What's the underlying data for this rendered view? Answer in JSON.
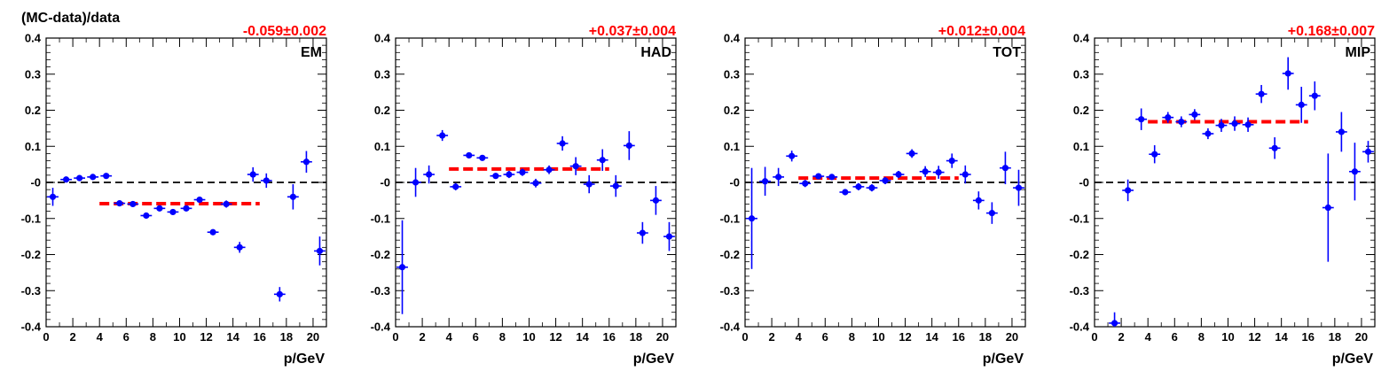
{
  "figure": {
    "ylabel": "(MC-data)/data",
    "xlabel": "p/GeV",
    "x_ticks": [
      "0",
      "2",
      "4",
      "6",
      "8",
      "10",
      "12",
      "14",
      "16",
      "18",
      "20"
    ],
    "y_ticks": [
      "-0.4",
      "-0.3",
      "-0.2",
      "-0.1",
      "-0",
      "0.1",
      "0.2",
      "0.3",
      "0.4"
    ],
    "colors": {
      "points": "#0000ff",
      "fit": "#ff0000",
      "zero_line": "#000000",
      "fit_text": "#ff0000"
    }
  },
  "chart_data": [
    {
      "type": "scatter",
      "panel_label": "EM",
      "fit_value": "-0.059±0.002",
      "fit_level": -0.059,
      "fit_range": [
        4,
        16
      ],
      "xlim": [
        0,
        21
      ],
      "ylim": [
        -0.4,
        0.4
      ],
      "grid": false,
      "points": [
        {
          "x": 0.5,
          "y": -0.04,
          "err": 0.025
        },
        {
          "x": 1.5,
          "y": 0.008,
          "err": 0.006
        },
        {
          "x": 2.5,
          "y": 0.012,
          "err": 0.005
        },
        {
          "x": 3.5,
          "y": 0.015,
          "err": 0.005
        },
        {
          "x": 4.5,
          "y": 0.018,
          "err": 0.005
        },
        {
          "x": 5.5,
          "y": -0.058,
          "err": 0.005
        },
        {
          "x": 6.5,
          "y": -0.06,
          "err": 0.005
        },
        {
          "x": 7.5,
          "y": -0.092,
          "err": 0.005
        },
        {
          "x": 8.5,
          "y": -0.072,
          "err": 0.006
        },
        {
          "x": 9.5,
          "y": -0.082,
          "err": 0.006
        },
        {
          "x": 10.5,
          "y": -0.072,
          "err": 0.007
        },
        {
          "x": 11.5,
          "y": -0.048,
          "err": 0.008
        },
        {
          "x": 12.5,
          "y": -0.138,
          "err": 0.008
        },
        {
          "x": 13.5,
          "y": -0.06,
          "err": 0.01
        },
        {
          "x": 14.5,
          "y": -0.18,
          "err": 0.015
        },
        {
          "x": 15.5,
          "y": 0.022,
          "err": 0.02
        },
        {
          "x": 16.5,
          "y": 0.005,
          "err": 0.02
        },
        {
          "x": 17.5,
          "y": -0.31,
          "err": 0.02
        },
        {
          "x": 18.5,
          "y": -0.04,
          "err": 0.035
        },
        {
          "x": 19.5,
          "y": 0.057,
          "err": 0.03
        },
        {
          "x": 20.5,
          "y": -0.19,
          "err": 0.04
        }
      ]
    },
    {
      "type": "scatter",
      "panel_label": "HAD",
      "fit_value": "+0.037±0.004",
      "fit_level": 0.037,
      "fit_range": [
        4,
        16
      ],
      "xlim": [
        0,
        21
      ],
      "ylim": [
        -0.4,
        0.4
      ],
      "grid": false,
      "points": [
        {
          "x": 0.5,
          "y": -0.235,
          "err": 0.13
        },
        {
          "x": 1.5,
          "y": 0.0,
          "err": 0.04
        },
        {
          "x": 2.5,
          "y": 0.022,
          "err": 0.025
        },
        {
          "x": 3.5,
          "y": 0.13,
          "err": 0.015
        },
        {
          "x": 4.5,
          "y": -0.012,
          "err": 0.01
        },
        {
          "x": 5.5,
          "y": 0.075,
          "err": 0.008
        },
        {
          "x": 6.5,
          "y": 0.068,
          "err": 0.008
        },
        {
          "x": 7.5,
          "y": 0.018,
          "err": 0.008
        },
        {
          "x": 8.5,
          "y": 0.022,
          "err": 0.01
        },
        {
          "x": 9.5,
          "y": 0.028,
          "err": 0.01
        },
        {
          "x": 10.5,
          "y": -0.002,
          "err": 0.012
        },
        {
          "x": 11.5,
          "y": 0.035,
          "err": 0.012
        },
        {
          "x": 12.5,
          "y": 0.108,
          "err": 0.02
        },
        {
          "x": 13.5,
          "y": 0.045,
          "err": 0.025
        },
        {
          "x": 14.5,
          "y": -0.005,
          "err": 0.025
        },
        {
          "x": 15.5,
          "y": 0.062,
          "err": 0.03
        },
        {
          "x": 16.5,
          "y": -0.01,
          "err": 0.03
        },
        {
          "x": 17.5,
          "y": 0.102,
          "err": 0.04
        },
        {
          "x": 18.5,
          "y": -0.14,
          "err": 0.03
        },
        {
          "x": 19.5,
          "y": -0.05,
          "err": 0.04
        },
        {
          "x": 20.5,
          "y": -0.15,
          "err": 0.04
        }
      ]
    },
    {
      "type": "scatter",
      "panel_label": "TOT",
      "fit_value": "+0.012±0.004",
      "fit_level": 0.012,
      "fit_range": [
        4,
        16
      ],
      "xlim": [
        0,
        21
      ],
      "ylim": [
        -0.4,
        0.4
      ],
      "grid": false,
      "points": [
        {
          "x": 0.5,
          "y": -0.1,
          "err": 0.14
        },
        {
          "x": 1.5,
          "y": 0.003,
          "err": 0.04
        },
        {
          "x": 2.5,
          "y": 0.015,
          "err": 0.025
        },
        {
          "x": 3.5,
          "y": 0.073,
          "err": 0.015
        },
        {
          "x": 4.5,
          "y": -0.003,
          "err": 0.01
        },
        {
          "x": 5.5,
          "y": 0.017,
          "err": 0.008
        },
        {
          "x": 6.5,
          "y": 0.015,
          "err": 0.008
        },
        {
          "x": 7.5,
          "y": -0.027,
          "err": 0.008
        },
        {
          "x": 8.5,
          "y": -0.012,
          "err": 0.01
        },
        {
          "x": 9.5,
          "y": -0.015,
          "err": 0.01
        },
        {
          "x": 10.5,
          "y": 0.005,
          "err": 0.01
        },
        {
          "x": 11.5,
          "y": 0.022,
          "err": 0.01
        },
        {
          "x": 12.5,
          "y": 0.08,
          "err": 0.012
        },
        {
          "x": 13.5,
          "y": 0.03,
          "err": 0.015
        },
        {
          "x": 14.5,
          "y": 0.028,
          "err": 0.018
        },
        {
          "x": 15.5,
          "y": 0.06,
          "err": 0.02
        },
        {
          "x": 16.5,
          "y": 0.022,
          "err": 0.025
        },
        {
          "x": 17.5,
          "y": -0.05,
          "err": 0.025
        },
        {
          "x": 18.5,
          "y": -0.085,
          "err": 0.03
        },
        {
          "x": 19.5,
          "y": 0.04,
          "err": 0.045
        },
        {
          "x": 20.5,
          "y": -0.015,
          "err": 0.05
        }
      ]
    },
    {
      "type": "scatter",
      "panel_label": "MIP",
      "fit_value": "+0.168±0.007",
      "fit_level": 0.168,
      "fit_range": [
        4,
        16
      ],
      "xlim": [
        0,
        21
      ],
      "ylim": [
        -0.4,
        0.4
      ],
      "grid": false,
      "points": [
        {
          "x": 1.5,
          "y": -0.39,
          "err": 0.03
        },
        {
          "x": 2.5,
          "y": -0.022,
          "err": 0.03
        },
        {
          "x": 3.5,
          "y": 0.175,
          "err": 0.03
        },
        {
          "x": 4.5,
          "y": 0.078,
          "err": 0.025
        },
        {
          "x": 5.5,
          "y": 0.18,
          "err": 0.015
        },
        {
          "x": 6.5,
          "y": 0.168,
          "err": 0.015
        },
        {
          "x": 7.5,
          "y": 0.188,
          "err": 0.015
        },
        {
          "x": 8.5,
          "y": 0.135,
          "err": 0.015
        },
        {
          "x": 9.5,
          "y": 0.158,
          "err": 0.018
        },
        {
          "x": 10.5,
          "y": 0.163,
          "err": 0.02
        },
        {
          "x": 11.5,
          "y": 0.16,
          "err": 0.02
        },
        {
          "x": 12.5,
          "y": 0.245,
          "err": 0.025
        },
        {
          "x": 13.5,
          "y": 0.095,
          "err": 0.03
        },
        {
          "x": 14.5,
          "y": 0.302,
          "err": 0.045
        },
        {
          "x": 15.5,
          "y": 0.215,
          "err": 0.05
        },
        {
          "x": 16.5,
          "y": 0.24,
          "err": 0.04
        },
        {
          "x": 17.5,
          "y": -0.07,
          "err": 0.15
        },
        {
          "x": 18.5,
          "y": 0.14,
          "err": 0.055
        },
        {
          "x": 19.5,
          "y": 0.03,
          "err": 0.08
        },
        {
          "x": 20.5,
          "y": 0.085,
          "err": 0.03
        }
      ]
    }
  ]
}
